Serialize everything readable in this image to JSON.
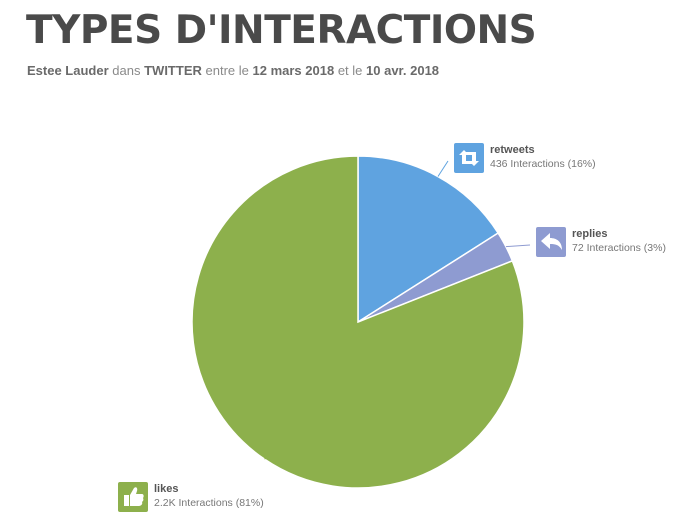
{
  "title": "TYPES D'INTERACTIONS",
  "subtitle": {
    "brand": "Estee Lauder",
    "in": "dans",
    "network": "TWITTER",
    "between": "entre le",
    "date_start": "12 mars 2018",
    "and": "et le",
    "date_end": "10 avr. 2018"
  },
  "chart_data": {
    "type": "pie",
    "labels": [
      "retweets",
      "replies",
      "likes"
    ],
    "values": [
      436,
      72,
      2200
    ],
    "percent": [
      16,
      3,
      81
    ],
    "value_labels": [
      "436 Interactions (16%)",
      "72 Interactions (3%)",
      "2.2K Interactions (81%)"
    ],
    "colors": [
      "#5fa3e0",
      "#8e9bd1",
      "#8db04c"
    ],
    "icons": [
      "retweet-icon",
      "reply-icon",
      "thumbs-up-icon"
    ]
  }
}
